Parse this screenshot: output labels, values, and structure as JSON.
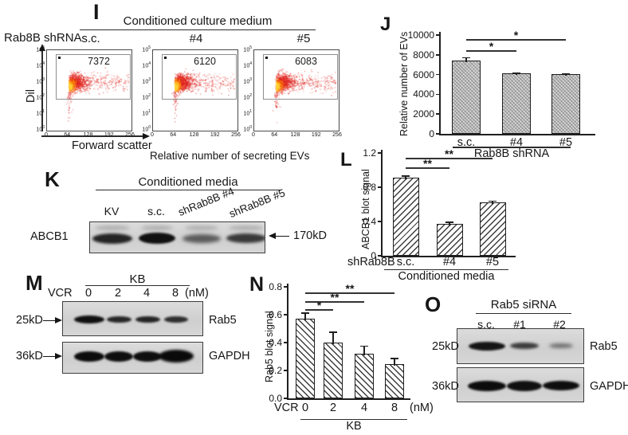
{
  "figure": {
    "panels": {
      "I": {
        "label": "I",
        "row_label": "Rab8B shRNA",
        "header": "Conditioned culture medium",
        "x_axis_label": "Forward scatter",
        "y_axis_label": "Dil",
        "caption": "Relative number of secreting EVs",
        "x_tick_labels": [
          "0",
          "64",
          "128",
          "192",
          "256"
        ],
        "y_tick_base": "10",
        "y_tick_exponents": [
          "5",
          "4",
          "3",
          "2",
          "1",
          "0"
        ],
        "plots": [
          {
            "condition": "s.c.",
            "count": "7372"
          },
          {
            "condition": "#4",
            "count": "6120"
          },
          {
            "condition": "#5",
            "count": "6083"
          }
        ]
      },
      "J": {
        "label": "J"
      },
      "K": {
        "label": "K",
        "header": "Conditioned media",
        "lanes": [
          "KV",
          "s.c.",
          "shRab8B #4",
          "shRab8B #5"
        ],
        "protein": "ABCB1",
        "marker": "170kD"
      },
      "L": {
        "label": "L"
      },
      "M": {
        "label": "M",
        "treatment": "VCR",
        "header": "KB",
        "doses": [
          "0",
          "2",
          "4",
          "8"
        ],
        "unit": "(nM)",
        "rows": [
          {
            "marker": "25kD",
            "protein": "Rab5"
          },
          {
            "marker": "36kD",
            "protein": "GAPDH"
          }
        ]
      },
      "N": {
        "label": "N"
      },
      "O": {
        "label": "O",
        "header": "Rab5 siRNA",
        "lanes": [
          "s.c.",
          "#1",
          "#2"
        ],
        "rows": [
          {
            "marker": "25kD",
            "protein": "Rab5"
          },
          {
            "marker": "36kD",
            "protein": "GAPDH"
          }
        ]
      }
    }
  },
  "chart_data": [
    {
      "id": "I",
      "type": "scatter",
      "title": "Relative number of secreting EVs",
      "xlabel": "Forward scatter",
      "ylabel": "Dil",
      "x_ticks": [
        0,
        64,
        128,
        192,
        256
      ],
      "y_ticks": [
        "10^0",
        "10^1",
        "10^2",
        "10^3",
        "10^4",
        "10^5"
      ],
      "series": [
        {
          "name": "s.c.",
          "gated_count": 7372
        },
        {
          "name": "#4",
          "gated_count": 6120
        },
        {
          "name": "#5",
          "gated_count": 6083
        }
      ]
    },
    {
      "id": "J",
      "type": "bar",
      "categories": [
        "s.c.",
        "#4",
        "#5"
      ],
      "values": [
        7380,
        6110,
        6050
      ],
      "errors": [
        400,
        120,
        100
      ],
      "xlabel": "Rab8B shRNA",
      "ylabel": "Relative number of EVs",
      "ylim": [
        0,
        10000
      ],
      "yticks": [
        0,
        2000,
        4000,
        6000,
        8000,
        10000
      ],
      "ytick_labels": [
        "0",
        "2000",
        "4000",
        "6000",
        "8000",
        "10000"
      ],
      "significance": [
        {
          "from": 0,
          "to": 1,
          "label": "*"
        },
        {
          "from": 0,
          "to": 2,
          "label": "*"
        }
      ]
    },
    {
      "id": "L",
      "type": "bar",
      "categories": [
        "s.c.",
        "#4",
        "#5"
      ],
      "values": [
        0.91,
        0.37,
        0.62
      ],
      "errors": [
        0.025,
        0.03,
        0.025
      ],
      "row_label": "shRab8B",
      "xlabel": "Conditioned media",
      "ylabel": "ABCB1 blot signal",
      "ylim": [
        0,
        1.2
      ],
      "yticks": [
        0,
        0.4,
        0.8,
        1.2
      ],
      "ytick_labels": [
        "0",
        "0.4",
        "0.8",
        "1.2"
      ],
      "significance": [
        {
          "from": 0,
          "to": 1,
          "label": "**"
        },
        {
          "from": 0,
          "to": 2,
          "label": "**"
        }
      ]
    },
    {
      "id": "N",
      "type": "bar",
      "categories": [
        "0",
        "2",
        "4",
        "8"
      ],
      "values": [
        0.57,
        0.4,
        0.32,
        0.245
      ],
      "errors": [
        0.045,
        0.08,
        0.06,
        0.045
      ],
      "row_label": "VCR",
      "unit": "(nM)",
      "xlabel": "KB",
      "ylabel": "Rab5 blot signal",
      "ylim": [
        0,
        0.8
      ],
      "yticks": [
        0,
        0.2,
        0.4,
        0.6,
        0.8
      ],
      "ytick_labels": [
        "0.0",
        "0.2",
        "0.4",
        "0.6",
        "0.8"
      ],
      "significance": [
        {
          "from": 0,
          "to": 1,
          "label": "*"
        },
        {
          "from": 0,
          "to": 2,
          "label": "**"
        },
        {
          "from": 0,
          "to": 3,
          "label": "**"
        }
      ]
    }
  ]
}
